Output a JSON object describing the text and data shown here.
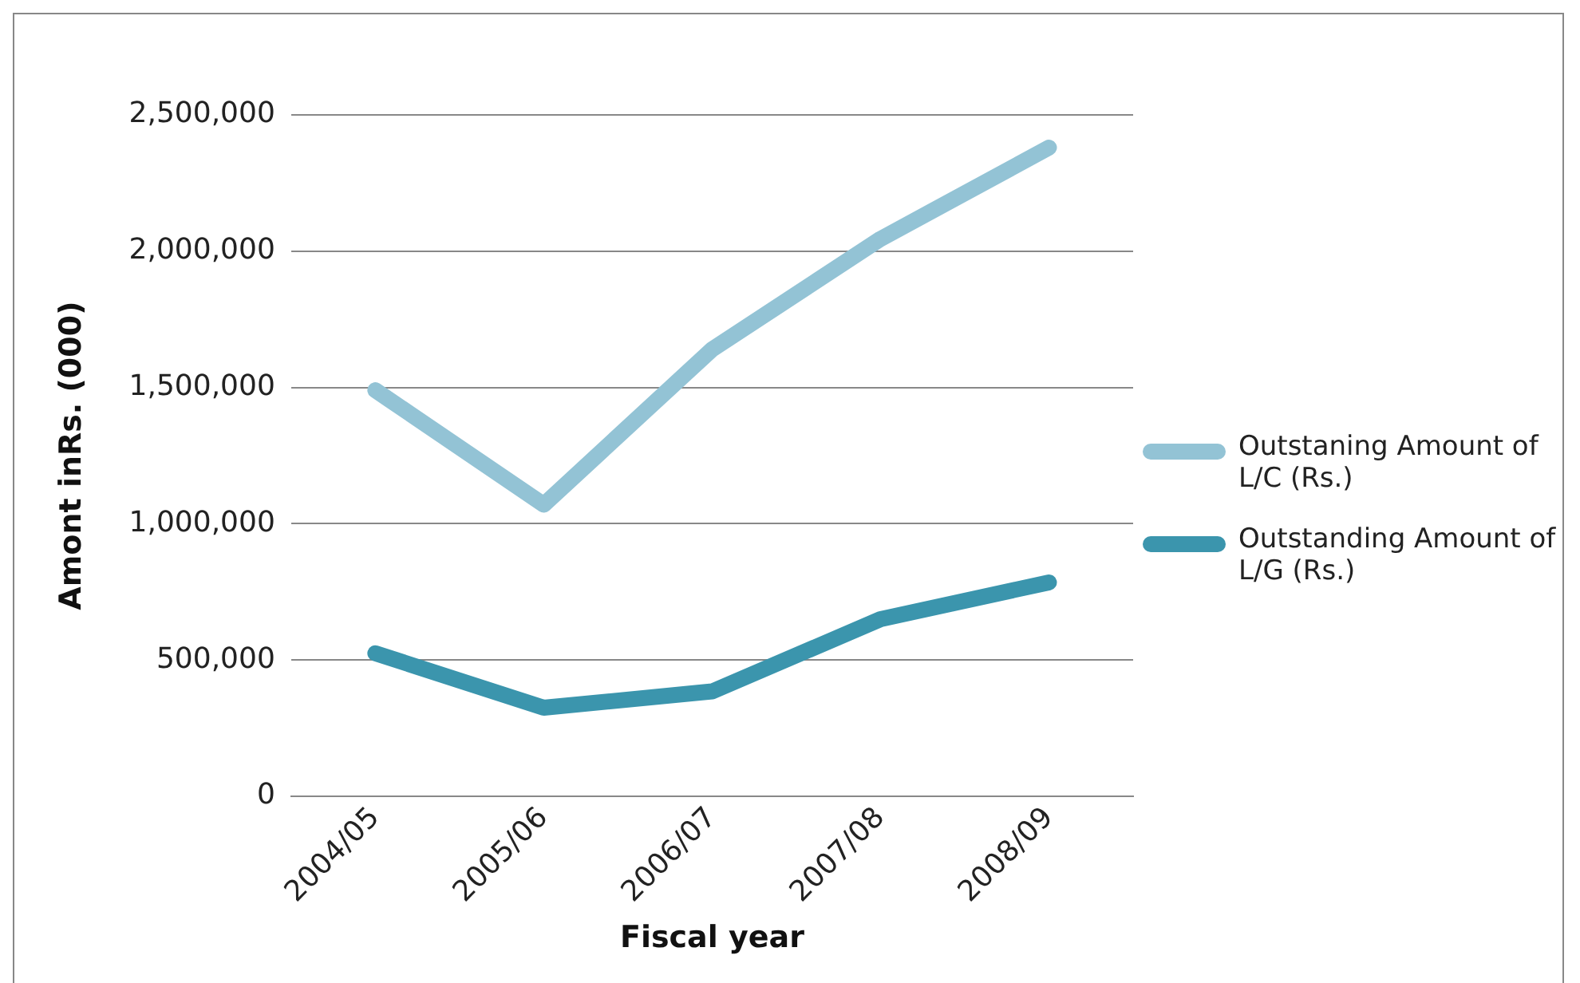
{
  "chart_data": {
    "type": "line",
    "xlabel": "Fiscal year",
    "ylabel": "Amont inRs. (000)",
    "categories": [
      "2004/05",
      "2005/06",
      "2006/07",
      "2007/08",
      "2008/09"
    ],
    "series": [
      {
        "name": "Outstaning Amount of L/C (Rs.)",
        "color": "#93c3d5",
        "values": [
          1490000,
          1070000,
          1640000,
          2045000,
          2380000
        ]
      },
      {
        "name": "Outstanding Amount of L/G (Rs.)",
        "color": "#3b95ad",
        "values": [
          525000,
          325000,
          385000,
          650000,
          785000
        ]
      }
    ],
    "ylim": [
      0,
      2500000
    ],
    "yticks": [
      {
        "value": 0,
        "label": "0"
      },
      {
        "value": 500000,
        "label": "500,000"
      },
      {
        "value": 1000000,
        "label": "1,000,000"
      },
      {
        "value": 1500000,
        "label": "1,500,000"
      },
      {
        "value": 2000000,
        "label": "2,000,000"
      },
      {
        "value": 2500000,
        "label": "2,500,000"
      }
    ],
    "grid": "y",
    "legend": "right",
    "marker": "none",
    "line_style": "solid"
  }
}
